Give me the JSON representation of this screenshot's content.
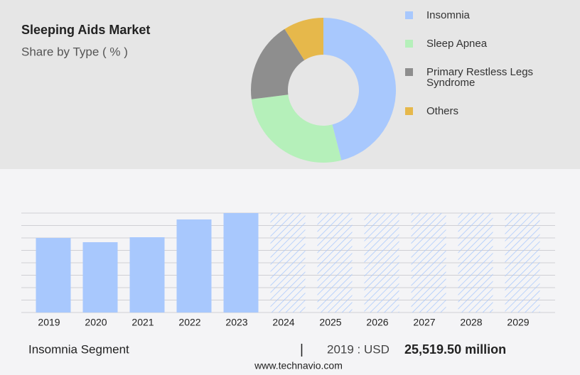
{
  "chart_data": [
    {
      "type": "pie",
      "donut": true,
      "title": "Sleeping Aids Market",
      "subtitle": "Share by Type ( % )",
      "categories": [
        "Insomnia",
        "Sleep Apnea",
        "Primary Restless Legs Syndrome",
        "Others"
      ],
      "values": [
        46,
        27,
        18,
        9
      ],
      "colors": [
        "#a8c8fd",
        "#b5f0ba",
        "#8e8e8e",
        "#e6b84b"
      ]
    },
    {
      "type": "bar",
      "categories": [
        "2019",
        "2020",
        "2021",
        "2022",
        "2023",
        "2024",
        "2025",
        "2026",
        "2027",
        "2028",
        "2029"
      ],
      "values": [
        25519.5,
        24060,
        25760,
        31850,
        34030,
        null,
        null,
        null,
        null,
        null,
        null
      ],
      "color": "#a8c8fd",
      "ylim": [
        0,
        34030
      ],
      "grid": true
    }
  ],
  "footer": {
    "segment": "Insomnia Segment",
    "separator": "|",
    "year_label": "2019 : USD",
    "value_label": "25,519.50 million",
    "source": "www.technavio.com"
  }
}
